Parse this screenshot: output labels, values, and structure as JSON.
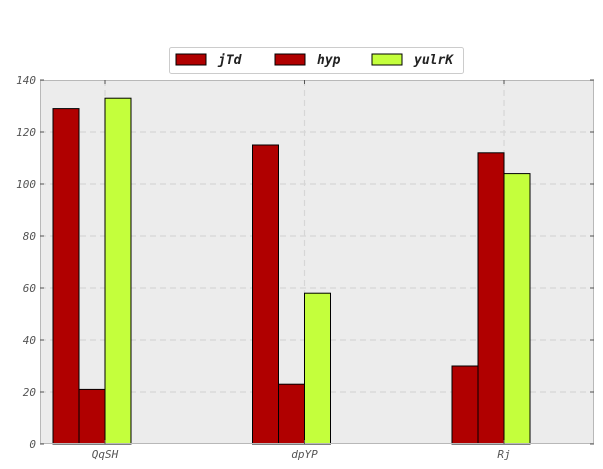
{
  "chart_data": {
    "type": "bar",
    "title": "",
    "xlabel": "",
    "ylabel": "",
    "categories": [
      "QqSH",
      "dpYP",
      "Rj"
    ],
    "series": [
      {
        "name": "jTd",
        "values": [
          129,
          115,
          30
        ],
        "color": "#b00000"
      },
      {
        "name": "hyp",
        "values": [
          21,
          23,
          112
        ],
        "color": "#b00000"
      },
      {
        "name": "yulrK",
        "values": [
          133,
          58,
          104
        ],
        "color": "#c4ff3c"
      }
    ],
    "ylim": [
      0,
      140
    ],
    "yticks": [
      0,
      20,
      40,
      60,
      80,
      100,
      120,
      140
    ],
    "grid": true,
    "legend_position": "top-center",
    "colors": {
      "plot_background": "#ececec",
      "grid": "#d6d6d6",
      "axes_edge": "#b8b8b8",
      "bar_edge": "#000000"
    }
  }
}
